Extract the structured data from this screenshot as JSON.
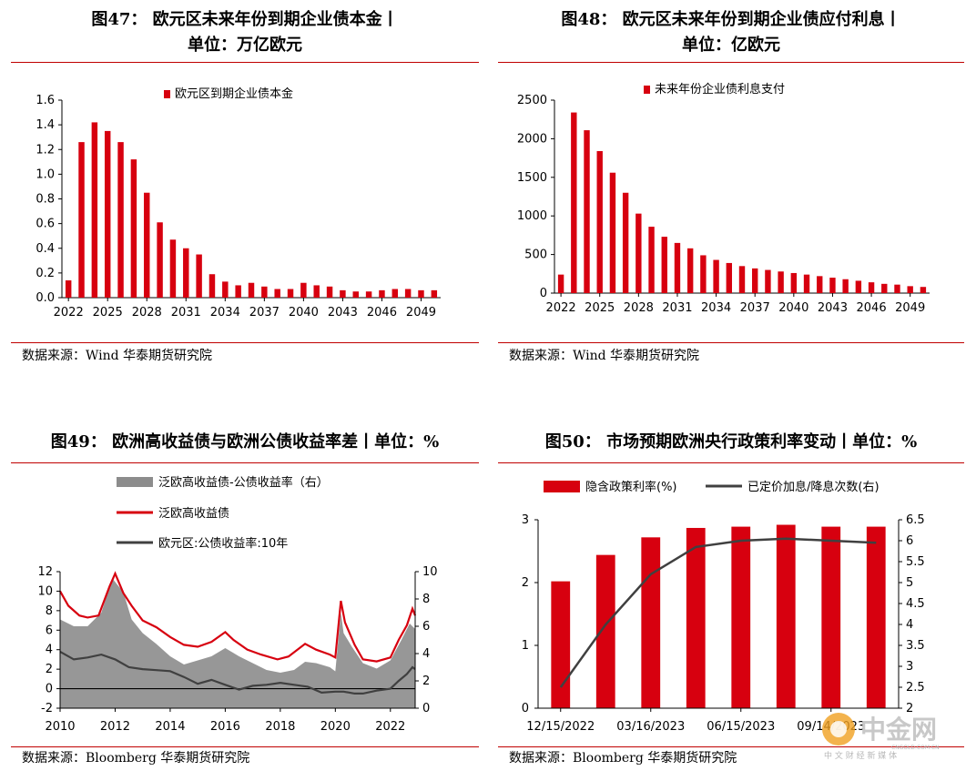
{
  "panels": [
    {
      "title_line1": "图47：  欧元区未来年份到期企业债本金丨",
      "title_line2": "单位：万亿欧元",
      "source": "数据来源：Wind 华泰期货研究院"
    },
    {
      "title_line1": "图48：  欧元区未来年份到期企业债应付利息丨",
      "title_line2": "单位：亿欧元",
      "source": "数据来源：Wind 华泰期货研究院"
    },
    {
      "title_line1": "图49：  欧洲高收益债与欧洲公债收益率差丨单位：%",
      "source": "数据来源：Bloomberg 华泰期货研究院"
    },
    {
      "title_line1": "图50：  市场预期欧洲央行政策利率变动丨单位：%",
      "source": "数据来源：Bloomberg 华泰期货研究院"
    }
  ],
  "watermark": {
    "name": "中金网",
    "sub": "中 文 财 经 新 媒 体",
    "url": "CNGOLD.COM.CN"
  },
  "colors": {
    "red": "#d7000f",
    "gray": "#8c8c8c",
    "dark": "#404040",
    "rule": "#c00000"
  },
  "chart_data": [
    {
      "type": "bar",
      "legend": "欧元区到期企业债本金",
      "x": [
        2022,
        2023,
        2024,
        2025,
        2026,
        2027,
        2028,
        2029,
        2030,
        2031,
        2032,
        2033,
        2034,
        2035,
        2036,
        2037,
        2038,
        2039,
        2040,
        2041,
        2042,
        2043,
        2044,
        2045,
        2046,
        2047,
        2048,
        2049,
        2050
      ],
      "values": [
        0.14,
        1.26,
        1.42,
        1.35,
        1.26,
        1.12,
        0.85,
        0.61,
        0.47,
        0.4,
        0.35,
        0.19,
        0.13,
        0.1,
        0.12,
        0.09,
        0.07,
        0.07,
        0.12,
        0.1,
        0.09,
        0.06,
        0.05,
        0.05,
        0.06,
        0.07,
        0.07,
        0.06,
        0.06
      ],
      "xticks": [
        "2022",
        "2025",
        "2028",
        "2031",
        "2034",
        "2037",
        "2040",
        "2043",
        "2046",
        "2049"
      ],
      "yticks": [
        "0.0",
        "0.2",
        "0.4",
        "0.6",
        "0.8",
        "1.0",
        "1.2",
        "1.4",
        "1.6"
      ],
      "ylim": [
        0,
        1.6
      ]
    },
    {
      "type": "bar",
      "legend": "未来年份企业债利息支付",
      "x": [
        2022,
        2023,
        2024,
        2025,
        2026,
        2027,
        2028,
        2029,
        2030,
        2031,
        2032,
        2033,
        2034,
        2035,
        2036,
        2037,
        2038,
        2039,
        2040,
        2041,
        2042,
        2043,
        2044,
        2045,
        2046,
        2047,
        2048,
        2049,
        2050
      ],
      "values": [
        240,
        2340,
        2110,
        1840,
        1560,
        1300,
        1030,
        860,
        730,
        650,
        580,
        490,
        430,
        390,
        350,
        320,
        300,
        280,
        260,
        240,
        220,
        200,
        180,
        160,
        140,
        120,
        110,
        90,
        80
      ],
      "xticks": [
        "2022",
        "2025",
        "2028",
        "2031",
        "2034",
        "2037",
        "2040",
        "2043",
        "2046",
        "2049"
      ],
      "yticks": [
        "0",
        "500",
        "1000",
        "1500",
        "2000",
        "2500"
      ],
      "ylim": [
        0,
        2500
      ]
    },
    {
      "type": "area",
      "legend": [
        "泛欧高收益债-公债收益率（右）",
        "泛欧高收益债",
        "欧元区:公债收益率:10年"
      ],
      "xticks": [
        "2010",
        "2012",
        "2014",
        "2016",
        "2018",
        "2020",
        "2022"
      ],
      "yticks_left": [
        "-2",
        "0",
        "2",
        "4",
        "6",
        "8",
        "10",
        "12"
      ],
      "yticks_right": [
        "0",
        "2",
        "4",
        "6",
        "8",
        "10"
      ],
      "ylim_left": [
        -2,
        12
      ],
      "ylim_right": [
        0,
        10
      ],
      "xlim": [
        2010,
        2022.9
      ],
      "spread_right": [
        [
          2010,
          6.5
        ],
        [
          2010.5,
          6.0
        ],
        [
          2011,
          6.0
        ],
        [
          2011.5,
          7.0
        ],
        [
          2011.9,
          9.5
        ],
        [
          2012.3,
          8.5
        ],
        [
          2012.6,
          6.5
        ],
        [
          2013,
          5.5
        ],
        [
          2013.5,
          4.7
        ],
        [
          2014,
          3.8
        ],
        [
          2014.5,
          3.2
        ],
        [
          2015,
          3.5
        ],
        [
          2015.5,
          3.8
        ],
        [
          2016,
          4.4
        ],
        [
          2016.5,
          3.8
        ],
        [
          2017,
          3.3
        ],
        [
          2017.5,
          2.8
        ],
        [
          2018,
          2.6
        ],
        [
          2018.5,
          2.8
        ],
        [
          2018.9,
          3.4
        ],
        [
          2019.3,
          3.3
        ],
        [
          2019.8,
          3.0
        ],
        [
          2020,
          2.7
        ],
        [
          2020.2,
          7.0
        ],
        [
          2020.3,
          5.5
        ],
        [
          2020.6,
          4.5
        ],
        [
          2021,
          3.3
        ],
        [
          2021.5,
          2.9
        ],
        [
          2022,
          3.5
        ],
        [
          2022.4,
          5.0
        ],
        [
          2022.7,
          6.2
        ],
        [
          2022.9,
          5.8
        ]
      ],
      "hy_left": [
        [
          2010,
          10
        ],
        [
          2010.3,
          8.5
        ],
        [
          2010.7,
          7.5
        ],
        [
          2011,
          7.3
        ],
        [
          2011.4,
          7.5
        ],
        [
          2011.8,
          10.5
        ],
        [
          2012,
          11.8
        ],
        [
          2012.3,
          9.8
        ],
        [
          2012.6,
          8.5
        ],
        [
          2013,
          7.0
        ],
        [
          2013.5,
          6.3
        ],
        [
          2014,
          5.3
        ],
        [
          2014.5,
          4.5
        ],
        [
          2015,
          4.3
        ],
        [
          2015.5,
          4.8
        ],
        [
          2016,
          5.8
        ],
        [
          2016.3,
          5.0
        ],
        [
          2016.8,
          4.0
        ],
        [
          2017.3,
          3.5
        ],
        [
          2017.9,
          3.0
        ],
        [
          2018.3,
          3.3
        ],
        [
          2018.9,
          4.6
        ],
        [
          2019.3,
          4.0
        ],
        [
          2019.8,
          3.5
        ],
        [
          2020,
          3.2
        ],
        [
          2020.2,
          9.0
        ],
        [
          2020.35,
          6.8
        ],
        [
          2020.7,
          4.5
        ],
        [
          2021,
          3.0
        ],
        [
          2021.5,
          2.8
        ],
        [
          2022,
          3.2
        ],
        [
          2022.3,
          5.0
        ],
        [
          2022.6,
          6.5
        ],
        [
          2022.8,
          8.2
        ],
        [
          2022.9,
          7.5
        ]
      ],
      "gov_left": [
        [
          2010,
          3.8
        ],
        [
          2010.5,
          3.0
        ],
        [
          2011,
          3.2
        ],
        [
          2011.5,
          3.5
        ],
        [
          2012,
          3.0
        ],
        [
          2012.5,
          2.2
        ],
        [
          2013,
          2.0
        ],
        [
          2013.5,
          1.9
        ],
        [
          2014,
          1.8
        ],
        [
          2014.5,
          1.2
        ],
        [
          2015,
          0.5
        ],
        [
          2015.5,
          0.9
        ],
        [
          2016,
          0.4
        ],
        [
          2016.5,
          -0.1
        ],
        [
          2017,
          0.3
        ],
        [
          2017.5,
          0.4
        ],
        [
          2018,
          0.6
        ],
        [
          2018.5,
          0.4
        ],
        [
          2019,
          0.2
        ],
        [
          2019.5,
          -0.4
        ],
        [
          2020,
          -0.3
        ],
        [
          2020.3,
          -0.3
        ],
        [
          2020.7,
          -0.5
        ],
        [
          2021,
          -0.5
        ],
        [
          2021.5,
          -0.2
        ],
        [
          2022,
          0.0
        ],
        [
          2022.3,
          0.8
        ],
        [
          2022.6,
          1.5
        ],
        [
          2022.8,
          2.2
        ],
        [
          2022.9,
          2.0
        ]
      ]
    },
    {
      "type": "bar+line",
      "legend": [
        "隐含政策利率(%)",
        "已定价加息/降息次数(右)"
      ],
      "categories": [
        "12/15/2022",
        "01/31/2023",
        "03/16/2023",
        "05/04/2023",
        "06/15/2023",
        "07/27/2023",
        "09/14/2023",
        "10/26/2023"
      ],
      "xtick_labels": [
        "12/15/2022",
        "03/16/2023",
        "06/15/2023",
        "09/14/2023"
      ],
      "bars_left": [
        2.02,
        2.44,
        2.72,
        2.87,
        2.89,
        2.92,
        2.89,
        2.89
      ],
      "line_right": [
        2.5,
        4.0,
        5.2,
        5.85,
        6.0,
        6.05,
        6.0,
        5.95
      ],
      "yticks_left": [
        "0",
        "1",
        "2",
        "3"
      ],
      "yticks_right": [
        "2",
        "2.5",
        "3",
        "3.5",
        "4",
        "4.5",
        "5",
        "5.5",
        "6",
        "6.5"
      ],
      "ylim_left": [
        0,
        3
      ],
      "ylim_right": [
        2,
        6.5
      ]
    }
  ]
}
